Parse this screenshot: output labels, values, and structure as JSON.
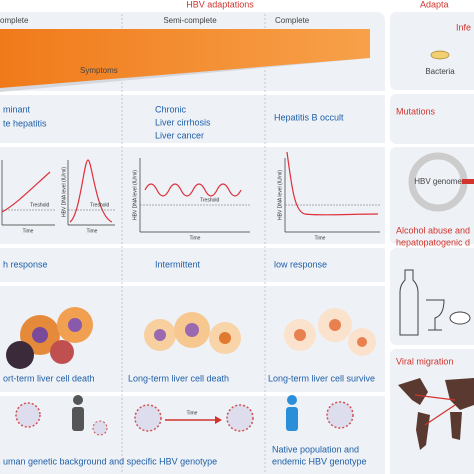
{
  "header": {
    "title": "HBV adaptations",
    "right_title": "Adapta"
  },
  "columns": [
    "omplete",
    "Semi-complete",
    "Complete"
  ],
  "symptoms": "Symptoms",
  "outcomes": [
    [
      "minant",
      "te hepatitis"
    ],
    [
      "Chronic",
      "Liver cirrhosis",
      "Liver cancer"
    ],
    [
      "Hepatitis B occult"
    ]
  ],
  "graph": {
    "y_label": "HBV DNA level (IU/ml)",
    "x_label": "Time",
    "threshold": "Treshold"
  },
  "responses": [
    "h response",
    "Intermittent",
    "low response"
  ],
  "cell_fates": [
    "ort-term liver cell death",
    "Long-term liver cell death",
    "Long-term liver cell survive"
  ],
  "bottom": {
    "arrow": "Time",
    "left": "uman genetic background and specific HBV genotype",
    "right": [
      "Native population and",
      "endemic HBV genotype"
    ]
  },
  "side": {
    "infection": "Infe",
    "bacteria": "Bacteria",
    "mutations": "Mutations",
    "genome": "HBV genome",
    "alcohol": [
      "Alcohol abuse and",
      "hepatopatogenic d"
    ],
    "migration": "Viral migration"
  }
}
